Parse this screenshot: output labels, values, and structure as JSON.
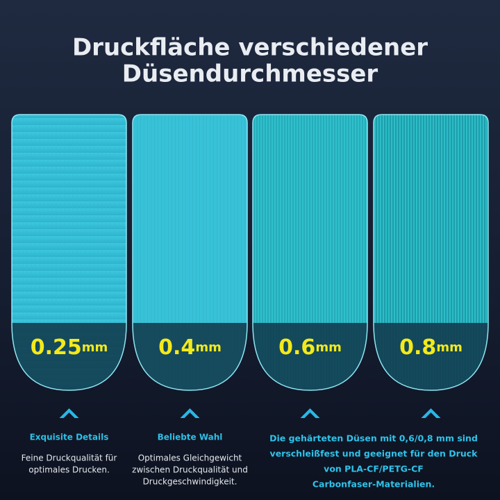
{
  "header": {
    "title": [
      "Druckfläche verschiedener",
      "Düsendurchmesser"
    ]
  },
  "cards": [
    {
      "size": "0.25",
      "unit": "mm"
    },
    {
      "size": "0.4",
      "unit": "mm"
    },
    {
      "size": "0.6",
      "unit": "mm"
    },
    {
      "size": "0.8",
      "unit": "mm"
    }
  ],
  "captions": [
    {
      "heading": "Exquisite Details",
      "body": [
        "Feine Druckqualität für",
        "optimales Drucken."
      ]
    },
    {
      "heading": "Beliebte Wahl",
      "body": [
        "Optimales Gleichgewicht",
        "zwischen Druckqualität und",
        "Druckgeschwindigkeit."
      ]
    },
    {
      "body": [
        "Die gehärteten Düsen mit 0,6/0,8 mm sind",
        "verschleißfest und geeignet für den Druck",
        "von PLA-CF/PETG-CF",
        "Carbonfaser-Materialien."
      ]
    }
  ]
}
